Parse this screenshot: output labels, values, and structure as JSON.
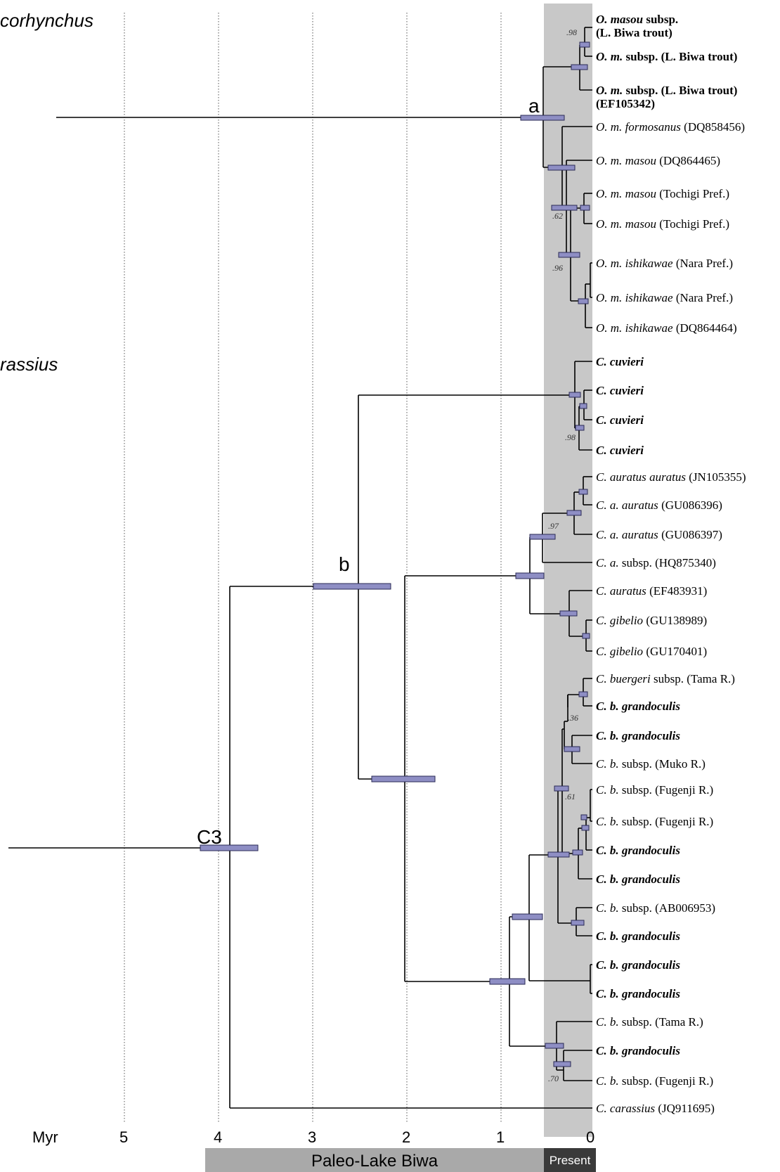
{
  "clades": [
    {
      "id": "onco",
      "label": "corhynchus"
    },
    {
      "id": "cara",
      "label": "rassius"
    }
  ],
  "axis": {
    "label": "Myr",
    "ticks": [
      "5",
      "4",
      "3",
      "2",
      "1",
      "0"
    ],
    "paleo_label": "Paleo-Lake Biwa",
    "present_label": "Present"
  },
  "node_labels": [
    "a",
    "b",
    "C3"
  ],
  "colors": {
    "hpd": "#8e8ec4",
    "present_shade": "#c8c8c8",
    "paleo_band": "#a9a9a9",
    "present_band": "#3a3a3a"
  },
  "tips": [
    {
      "text": "O. masou subsp. (L. Biwa trout)",
      "bold": true
    },
    {
      "text": "O. m. subsp. (L. Biwa trout)",
      "bold": true
    },
    {
      "text": "O. m. subsp. (L. Biwa trout) (EF105342)",
      "bold": true
    },
    {
      "text": "O. m. formosanus (DQ858456)",
      "bold": false
    },
    {
      "text": "O. m. masou (DQ864465)",
      "bold": false
    },
    {
      "text": "O. m. masou (Tochigi Pref.)",
      "bold": false
    },
    {
      "text": "O. m. masou (Tochigi Pref.)",
      "bold": false
    },
    {
      "text": "O. m. ishikawae (Nara Pref.)",
      "bold": false
    },
    {
      "text": "O. m. ishikawae (Nara Pref.)",
      "bold": false
    },
    {
      "text": "O. m. ishikawae (DQ864464)",
      "bold": false
    },
    {
      "text": "C. cuvieri",
      "bold": true
    },
    {
      "text": "C. cuvieri",
      "bold": true
    },
    {
      "text": "C. cuvieri",
      "bold": true
    },
    {
      "text": "C. cuvieri",
      "bold": true
    },
    {
      "text": "C. auratus auratus (JN105355)",
      "bold": false
    },
    {
      "text": "C. a. auratus (GU086396)",
      "bold": false
    },
    {
      "text": "C. a. auratus (GU086397)",
      "bold": false
    },
    {
      "text": "C. a. subsp. (HQ875340)",
      "bold": false
    },
    {
      "text": "C. auratus (EF483931)",
      "bold": false
    },
    {
      "text": "C. gibelio (GU138989)",
      "bold": false
    },
    {
      "text": "C. gibelio (GU170401)",
      "bold": false
    },
    {
      "text": "C. buergeri subsp. (Tama R.)",
      "bold": false
    },
    {
      "text": "C. b. grandoculis",
      "bold": true
    },
    {
      "text": "C. b. grandoculis",
      "bold": true
    },
    {
      "text": "C. b. subsp. (Muko R.)",
      "bold": false
    },
    {
      "text": "C. b. subsp. (Fugenji R.)",
      "bold": false
    },
    {
      "text": "C. b. subsp. (Fugenji R.)",
      "bold": false
    },
    {
      "text": "C. b. grandoculis",
      "bold": true
    },
    {
      "text": "C. b. grandoculis",
      "bold": true
    },
    {
      "text": "C. b. subsp. (AB006953)",
      "bold": false
    },
    {
      "text": "C. b. grandoculis",
      "bold": true
    },
    {
      "text": "C. b. grandoculis",
      "bold": true
    },
    {
      "text": "C. b. grandoculis",
      "bold": true
    },
    {
      "text": "C. b. subsp. (Tama R.)",
      "bold": false
    },
    {
      "text": "C. b. grandoculis",
      "bold": true
    },
    {
      "text": "C. b. subsp. (Fugenji R.)",
      "bold": false
    },
    {
      "text": "C. carassius (JQ911695)",
      "bold": false
    }
  ],
  "supports": [
    ".98",
    ".62",
    ".96",
    ".98",
    ".97",
    ".36",
    ".61",
    ".70"
  ]
}
